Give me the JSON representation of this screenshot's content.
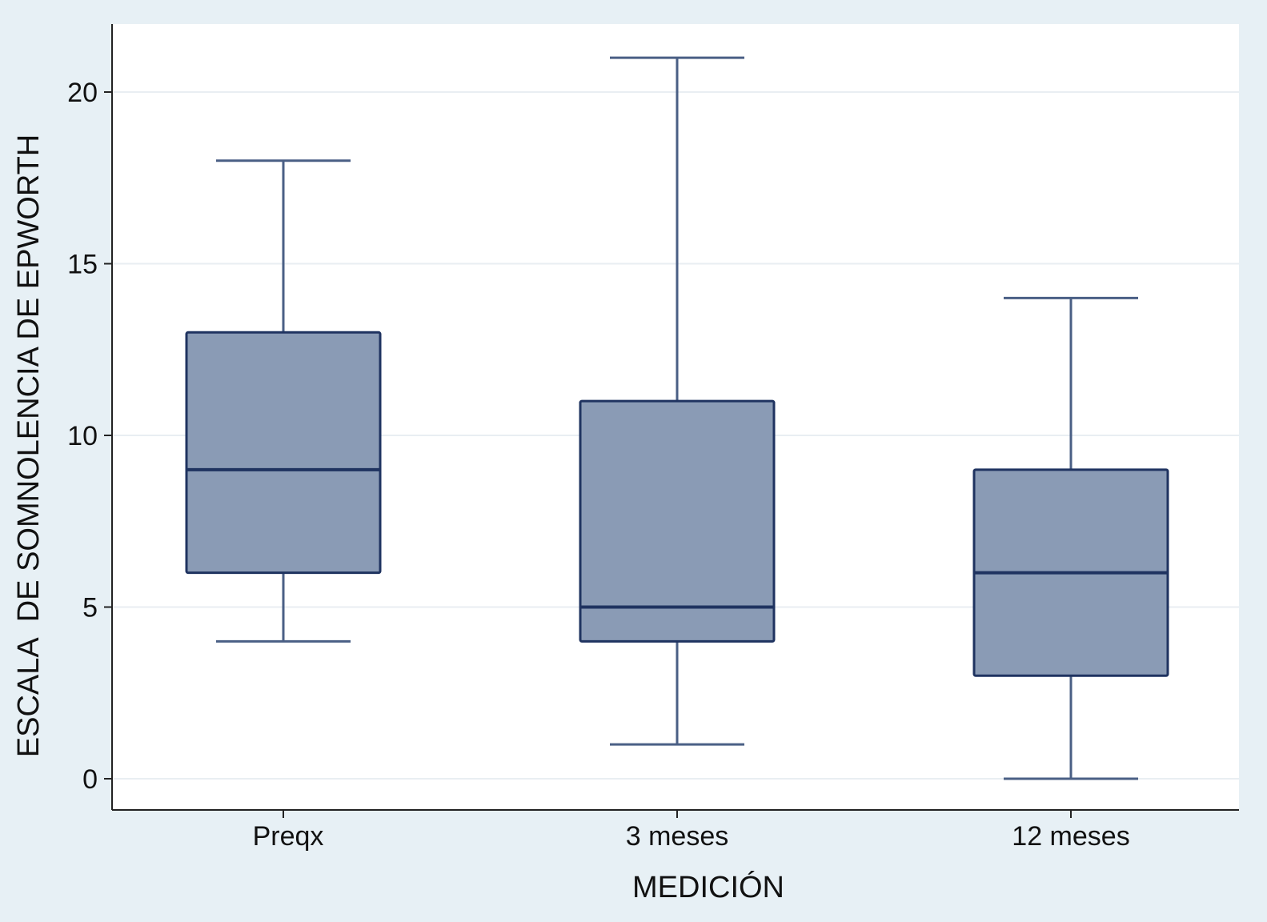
{
  "chart_data": {
    "type": "box",
    "title": "",
    "xlabel": "MEDICIÓN",
    "ylabel": "ESCALA  DE SOMNOLENCIA DE EPWORTH",
    "categories": [
      "Preqx",
      "3 meses",
      "12 meses"
    ],
    "boxes": [
      {
        "category": "Preqx",
        "min": 4,
        "q1": 6,
        "median": 9,
        "q3": 13,
        "max": 18
      },
      {
        "category": "3 meses",
        "min": 1,
        "q1": 4,
        "median": 5,
        "q3": 11,
        "max": 21
      },
      {
        "category": "12 meses",
        "min": 0,
        "q1": 3,
        "median": 6,
        "q3": 9,
        "max": 14
      }
    ],
    "yticks": [
      "0",
      "5",
      "10",
      "15",
      "20"
    ],
    "ylim": [
      -0.9,
      22
    ],
    "grid": true,
    "legend": "none",
    "colors": {
      "background": "#e7f0f5",
      "plot_background": "#ffffff",
      "box_fill": "#8a9bb5",
      "box_stroke": "#1f3360",
      "whisker": "#4a5f85",
      "grid": "#e9eef2",
      "axis": "#222222"
    }
  }
}
